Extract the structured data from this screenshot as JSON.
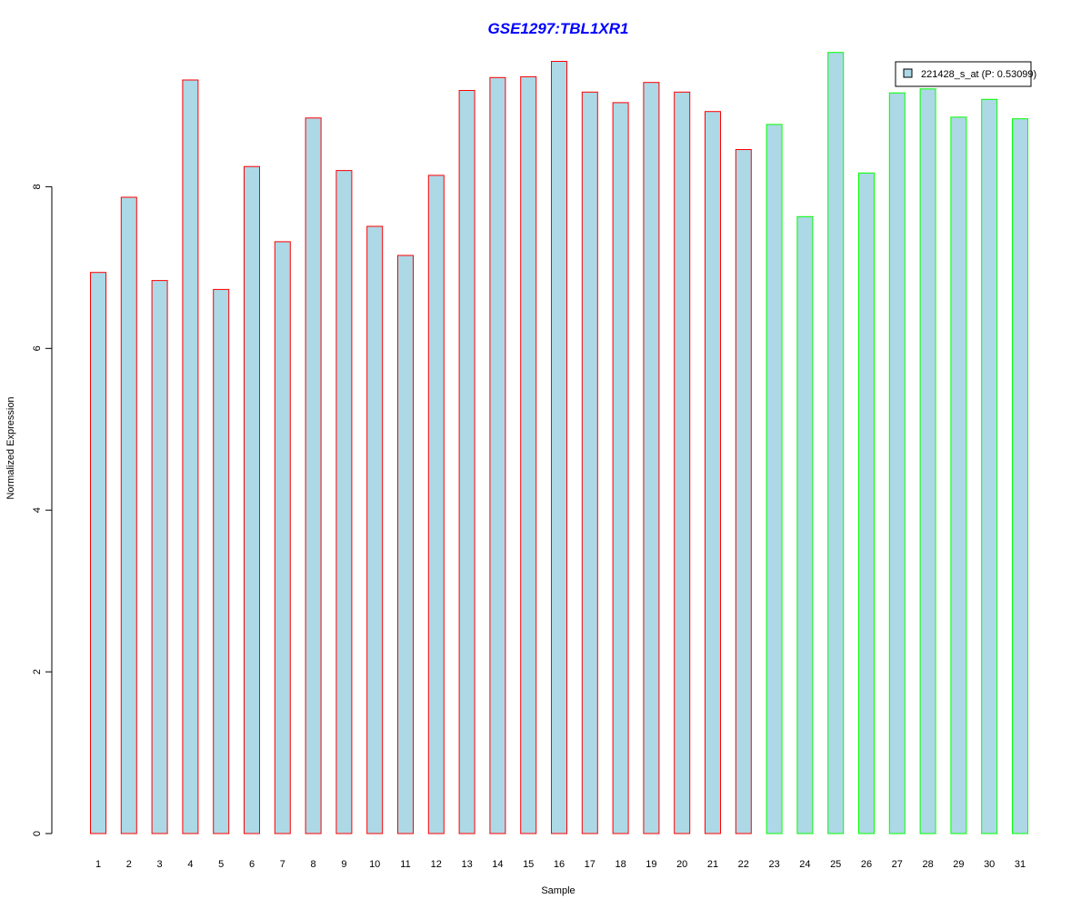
{
  "chart_data": {
    "type": "bar",
    "title": "GSE1297:TBL1XR1",
    "xlabel": "Sample",
    "ylabel": "Normalized Expression",
    "ylim": [
      0,
      9.8
    ],
    "yticks": [
      0,
      2,
      4,
      6,
      8
    ],
    "grid": false,
    "legend": {
      "label": "221428_s_at (P: 0.53099)",
      "placement": "top-right"
    },
    "categories": [
      "1",
      "2",
      "3",
      "4",
      "5",
      "6",
      "7",
      "8",
      "9",
      "10",
      "11",
      "12",
      "13",
      "14",
      "15",
      "16",
      "17",
      "18",
      "19",
      "20",
      "21",
      "22",
      "23",
      "24",
      "25",
      "26",
      "27",
      "28",
      "29",
      "30",
      "31"
    ],
    "values": [
      6.94,
      7.87,
      6.84,
      9.32,
      6.73,
      8.25,
      7.32,
      8.85,
      8.2,
      7.51,
      7.15,
      8.14,
      9.19,
      9.35,
      9.36,
      9.55,
      9.17,
      9.04,
      9.29,
      9.17,
      8.93,
      8.46,
      8.77,
      7.63,
      9.66,
      8.17,
      9.16,
      9.21,
      8.86,
      9.08,
      8.84
    ],
    "fill_color": "#add8e6",
    "group_colors": [
      "#ff0000",
      "#00ff00"
    ],
    "groups": [
      0,
      0,
      0,
      0,
      0,
      0,
      0,
      0,
      0,
      0,
      0,
      0,
      0,
      0,
      0,
      0,
      0,
      0,
      0,
      0,
      0,
      0,
      1,
      1,
      1,
      1,
      1,
      1,
      1,
      1,
      1
    ],
    "title_color": "#0000ff"
  }
}
